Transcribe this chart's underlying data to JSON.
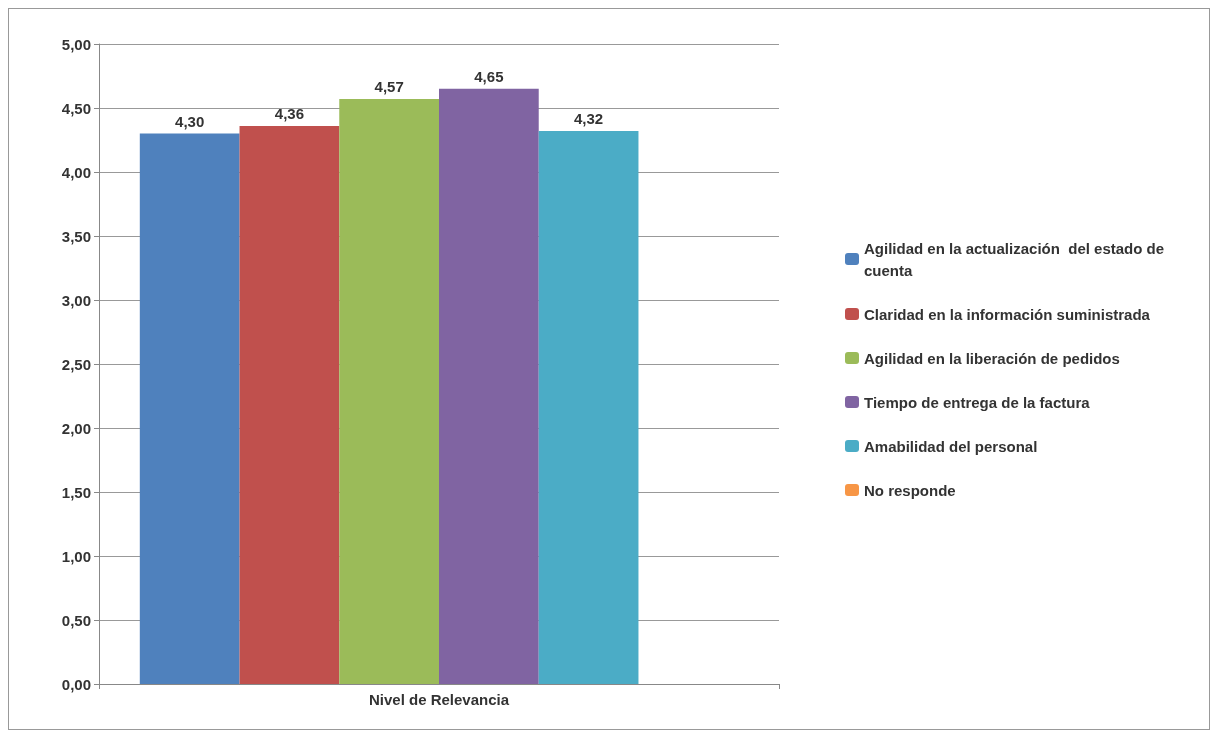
{
  "chart_data": {
    "type": "bar",
    "categories": [
      "Nivel de Relevancia"
    ],
    "series": [
      {
        "name": "Agilidad en la actualización  del estado de cuenta",
        "color": "#4f81bd",
        "values": [
          4.3
        ],
        "value_labels": [
          "4,30"
        ]
      },
      {
        "name": "Claridad en la información suministrada",
        "color": "#c0504d",
        "values": [
          4.36
        ],
        "value_labels": [
          "4,36"
        ]
      },
      {
        "name": "Agilidad en la liberación de pedidos",
        "color": "#9bbb59",
        "values": [
          4.57
        ],
        "value_labels": [
          "4,57"
        ]
      },
      {
        "name": "Tiempo de entrega de la factura",
        "color": "#8064a2",
        "values": [
          4.65
        ],
        "value_labels": [
          "4,65"
        ]
      },
      {
        "name": "Amabilidad del personal",
        "color": "#4bacc6",
        "values": [
          4.32
        ],
        "value_labels": [
          "4,32"
        ]
      },
      {
        "name": "No responde",
        "color": "#f79646",
        "values": [
          null
        ],
        "value_labels": [
          null
        ]
      }
    ],
    "ylim": [
      0,
      5
    ],
    "yticks": [
      {
        "value": 0,
        "label": "0,00"
      },
      {
        "value": 0.5,
        "label": "0,50"
      },
      {
        "value": 1,
        "label": "1,00"
      },
      {
        "value": 1.5,
        "label": "1,50"
      },
      {
        "value": 2,
        "label": "2,00"
      },
      {
        "value": 2.5,
        "label": "2,50"
      },
      {
        "value": 3,
        "label": "3,00"
      },
      {
        "value": 3.5,
        "label": "3,50"
      },
      {
        "value": 4,
        "label": "4,00"
      },
      {
        "value": 4.5,
        "label": "4,50"
      },
      {
        "value": 5,
        "label": "5,00"
      }
    ],
    "grid": "y",
    "legend": "right"
  }
}
